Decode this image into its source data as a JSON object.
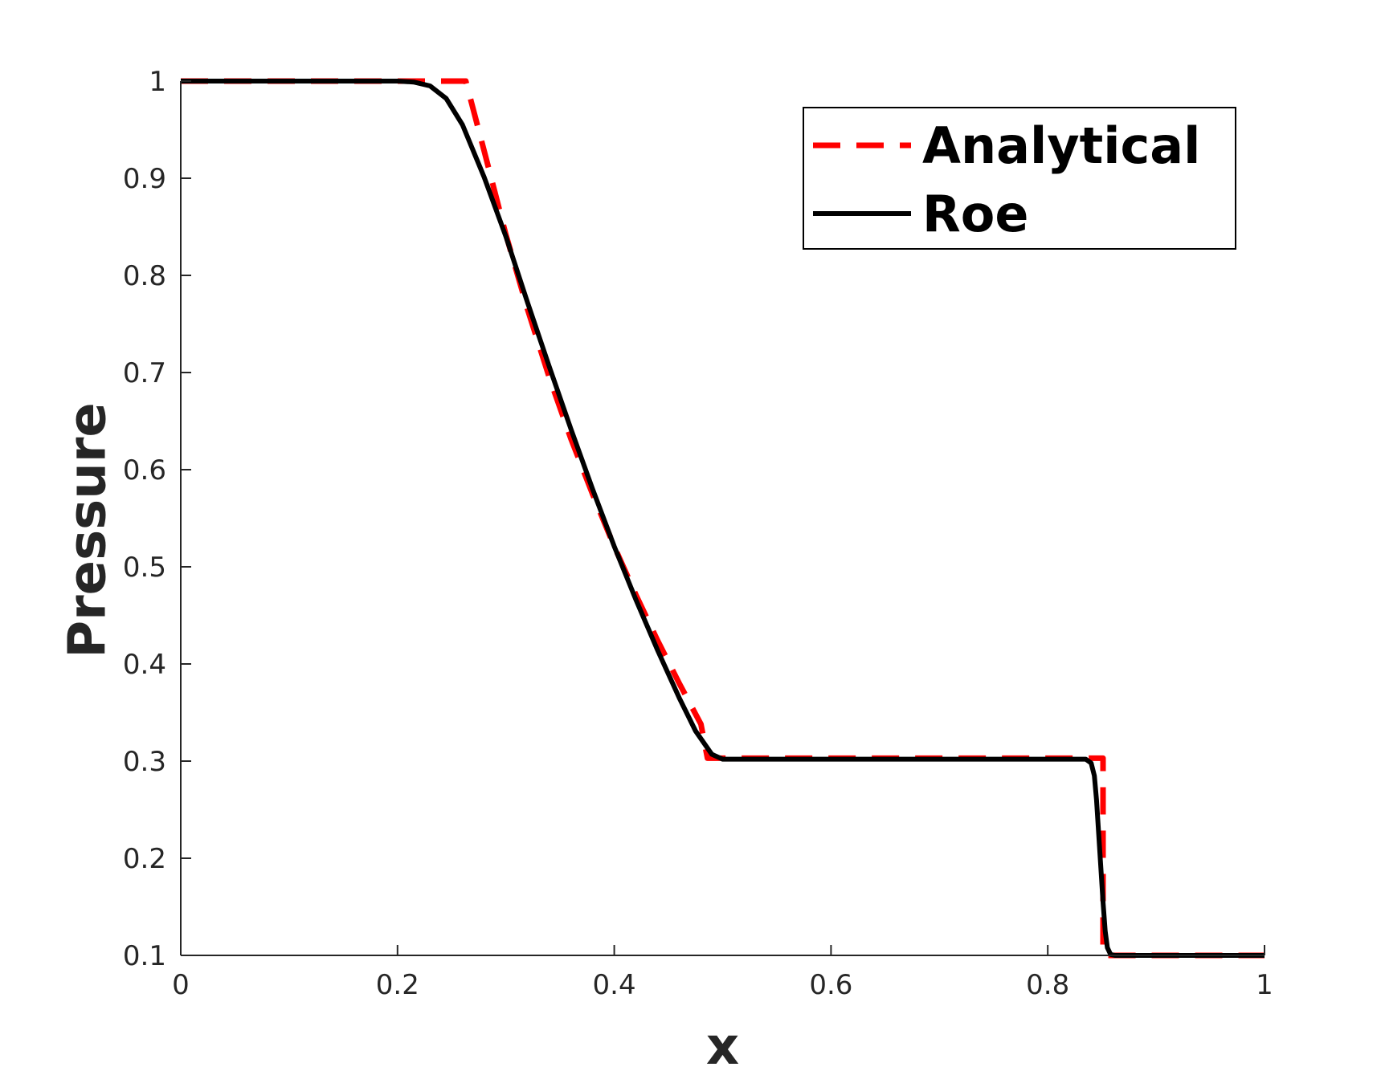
{
  "chart_data": {
    "type": "line",
    "xlabel": "x",
    "ylabel": "Pressure",
    "xlim": [
      0,
      1
    ],
    "ylim": [
      0.1,
      1
    ],
    "xticks": [
      0,
      0.2,
      0.4,
      0.6,
      0.8,
      1
    ],
    "xtick_labels": [
      "0",
      "0.2",
      "0.4",
      "0.6",
      "0.8",
      "1"
    ],
    "yticks": [
      0.1,
      0.2,
      0.3,
      0.4,
      0.5,
      0.6,
      0.7,
      0.8,
      0.9,
      1
    ],
    "ytick_labels": [
      "0.1",
      "0.2",
      "0.3",
      "0.4",
      "0.5",
      "0.6",
      "0.7",
      "0.8",
      "0.9",
      "1"
    ],
    "grid": false,
    "legend_position": "top-right",
    "series": [
      {
        "name": "Analytical",
        "style": "dashed",
        "color": "#ff0000",
        "x": [
          0,
          0.263,
          0.28,
          0.3,
          0.32,
          0.34,
          0.36,
          0.38,
          0.4,
          0.42,
          0.44,
          0.46,
          0.48,
          0.486,
          0.7,
          0.851,
          0.851,
          1
        ],
        "y": [
          1,
          1,
          0.928,
          0.842,
          0.765,
          0.695,
          0.632,
          0.575,
          0.521,
          0.471,
          0.424,
          0.38,
          0.338,
          0.303,
          0.303,
          0.303,
          0.1,
          0.1
        ]
      },
      {
        "name": "Roe",
        "style": "solid",
        "color": "#000000",
        "x": [
          0,
          0.2,
          0.215,
          0.23,
          0.245,
          0.26,
          0.28,
          0.3,
          0.32,
          0.34,
          0.36,
          0.38,
          0.4,
          0.42,
          0.44,
          0.46,
          0.475,
          0.49,
          0.5,
          0.52,
          0.8,
          0.835,
          0.84,
          0.843,
          0.845,
          0.847,
          0.849,
          0.851,
          0.853,
          0.855,
          0.858,
          0.862,
          1
        ],
        "y": [
          1,
          1,
          0.999,
          0.995,
          0.982,
          0.955,
          0.901,
          0.84,
          0.772,
          0.706,
          0.642,
          0.58,
          0.521,
          0.466,
          0.414,
          0.365,
          0.331,
          0.307,
          0.302,
          0.302,
          0.302,
          0.302,
          0.298,
          0.285,
          0.26,
          0.225,
          0.19,
          0.155,
          0.125,
          0.108,
          0.101,
          0.1,
          0.1
        ]
      }
    ]
  }
}
